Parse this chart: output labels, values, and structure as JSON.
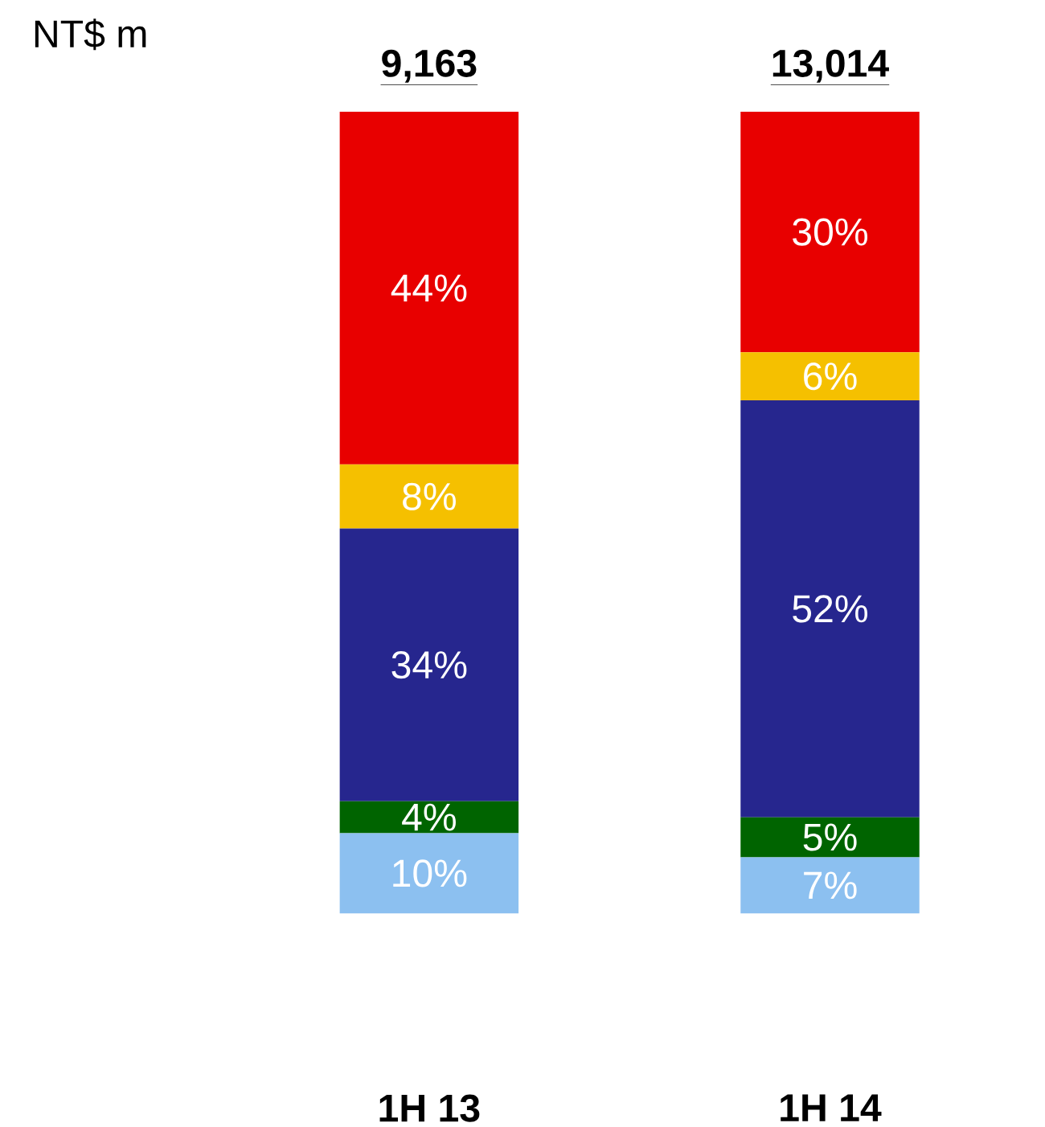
{
  "chart_data": {
    "type": "bar",
    "stacked": true,
    "categories": [
      "1H 13",
      "1H 14"
    ],
    "series": [
      {
        "color": "#8cc0f0",
        "values": [
          10,
          7
        ],
        "value_labels": [
          "10%",
          "7%"
        ]
      },
      {
        "color": "#006400",
        "values": [
          4,
          5
        ],
        "value_labels": [
          "4%",
          "5%"
        ]
      },
      {
        "color": "#26268e",
        "values": [
          34,
          52
        ],
        "value_labels": [
          "34%",
          "52%"
        ]
      },
      {
        "color": "#f5c000",
        "values": [
          8,
          6
        ],
        "value_labels": [
          "8%",
          "6%"
        ]
      },
      {
        "color": "#e80000",
        "values": [
          44,
          30
        ],
        "value_labels": [
          "44%",
          "30%"
        ]
      }
    ],
    "annotations": [
      "NT$ m",
      {
        "text": "9,163",
        "x": "1H 13",
        "y": 100
      },
      {
        "text": "13,014",
        "x": "1H 14",
        "y": 100
      }
    ]
  }
}
